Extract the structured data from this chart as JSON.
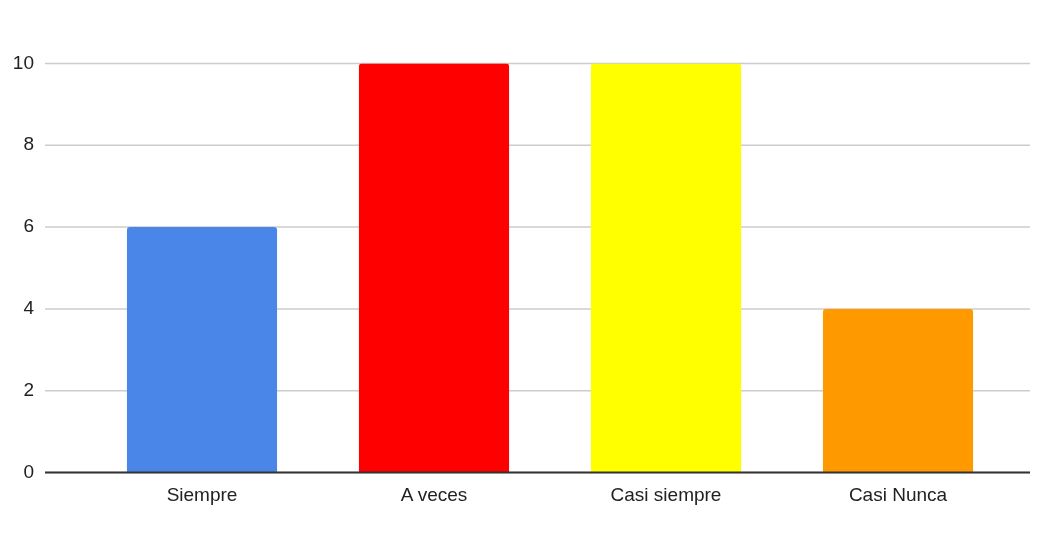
{
  "chart_data": {
    "type": "bar",
    "categories": [
      "Siempre",
      "A veces",
      "Casi siempre",
      "Casi Nunca"
    ],
    "values": [
      6,
      10,
      10,
      4
    ],
    "colors": [
      "#4a86e8",
      "#ff0000",
      "#ffff00",
      "#ff9900"
    ],
    "ylim": [
      0,
      10
    ],
    "yticks": [
      0,
      2,
      4,
      6,
      8,
      10
    ],
    "grid": "y"
  }
}
